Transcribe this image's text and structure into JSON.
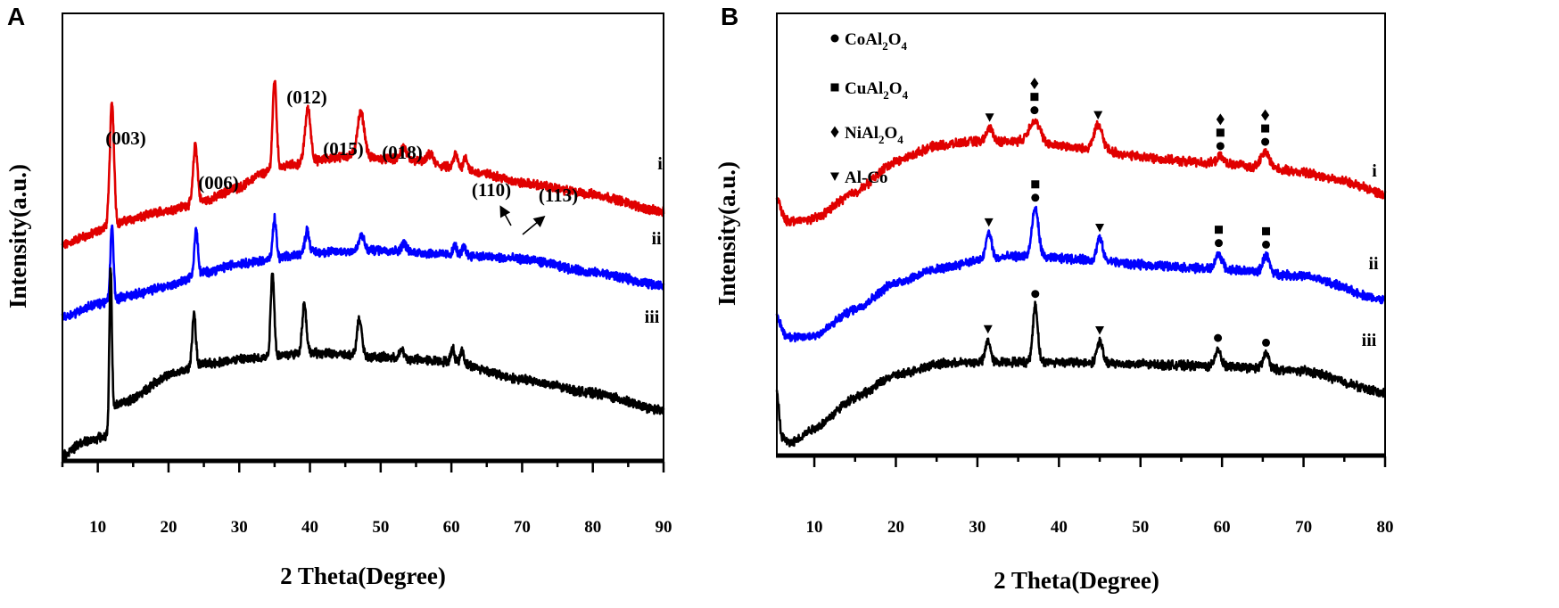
{
  "chart_data": [
    {
      "panel_label": "A",
      "type": "line",
      "xlabel": "2 Theta(Degree)",
      "ylabel": "Intensity(a.u.)",
      "xlim": [
        5,
        90
      ],
      "ylim": [
        0,
        100
      ],
      "xticks": [
        10,
        20,
        30,
        40,
        50,
        60,
        70,
        80,
        90
      ],
      "xtick_labels": [
        "10",
        "20",
        "30",
        "40",
        "50",
        "60",
        "70",
        "80",
        "90"
      ],
      "grid": false,
      "annotations": [
        {
          "text": "(003)",
          "x": 12.0
        },
        {
          "text": "(006)",
          "x": 23.8
        },
        {
          "text": "(012)",
          "x": 35.0
        },
        {
          "text": "(015)",
          "x": 39.7
        },
        {
          "text": "(018)",
          "x": 47.2
        },
        {
          "text": "(110)",
          "x": 60.6
        },
        {
          "text": "(113)",
          "x": 62.0
        }
      ],
      "series": [
        {
          "name": "i",
          "color": "#e00000",
          "baseline": [
            [
              5,
              48
            ],
            [
              8,
              50
            ],
            [
              12,
              52.5
            ],
            [
              15,
              54
            ],
            [
              20,
              56
            ],
            [
              25,
              58
            ],
            [
              30,
              61
            ],
            [
              33,
              64
            ],
            [
              37,
              66
            ],
            [
              45,
              68
            ],
            [
              50,
              67.5
            ],
            [
              55,
              67
            ],
            [
              60,
              65.5
            ],
            [
              65,
              64
            ],
            [
              70,
              62
            ],
            [
              80,
              59.5
            ],
            [
              90,
              55.5
            ]
          ],
          "peaks": [
            [
              12.0,
              27.5,
              0.3
            ],
            [
              23.8,
              13,
              0.3
            ],
            [
              35.0,
              20,
              0.28
            ],
            [
              39.7,
              12,
              0.4
            ],
            [
              47.2,
              10,
              0.5
            ],
            [
              53.2,
              3,
              0.4
            ],
            [
              57,
              2,
              0.4
            ],
            [
              60.6,
              3,
              0.3
            ],
            [
              62.0,
              3,
              0.3
            ]
          ]
        },
        {
          "name": "ii",
          "color": "#0000ff",
          "baseline": [
            [
              5,
              32
            ],
            [
              10,
              35
            ],
            [
              15,
              37
            ],
            [
              20,
              39
            ],
            [
              25,
              42
            ],
            [
              30,
              44
            ],
            [
              35,
              45
            ],
            [
              40,
              46.5
            ],
            [
              50,
              47
            ],
            [
              60,
              46
            ],
            [
              70,
              45
            ],
            [
              80,
              42
            ],
            [
              90,
              39
            ]
          ],
          "peaks": [
            [
              12.0,
              16.5,
              0.22
            ],
            [
              23.9,
              10,
              0.25
            ],
            [
              35.0,
              9,
              0.25
            ],
            [
              39.6,
              5,
              0.3
            ],
            [
              47.3,
              3.5,
              0.35
            ],
            [
              53.3,
              2,
              0.3
            ],
            [
              60.5,
              2,
              0.25
            ],
            [
              61.8,
              2,
              0.25
            ]
          ]
        },
        {
          "name": "iii",
          "color": "#000000",
          "baseline": [
            [
              5,
              1
            ],
            [
              8,
              4
            ],
            [
              11.5,
              5.5
            ],
            [
              11.9,
              12
            ],
            [
              14,
              13
            ],
            [
              20,
              19
            ],
            [
              25,
              21.5
            ],
            [
              30,
              22.5
            ],
            [
              40,
              24
            ],
            [
              50,
              23
            ],
            [
              55,
              22.5
            ],
            [
              60,
              22
            ],
            [
              70,
              18
            ],
            [
              80,
              15
            ],
            [
              90,
              11
            ]
          ],
          "peaks": [
            [
              11.8,
              32,
              0.18
            ],
            [
              23.6,
              12,
              0.25
            ],
            [
              34.7,
              19,
              0.25
            ],
            [
              39.2,
              11,
              0.3
            ],
            [
              47.0,
              8.5,
              0.35
            ],
            [
              53,
              2,
              0.3
            ],
            [
              60.2,
              3,
              0.25
            ],
            [
              61.5,
              3,
              0.25
            ]
          ]
        }
      ]
    },
    {
      "panel_label": "B",
      "type": "line",
      "xlabel": "2 Theta(Degree)",
      "ylabel": "Intensity(a.u.)",
      "xlim": [
        5.4,
        80
      ],
      "ylim": [
        0,
        100
      ],
      "xticks": [
        10,
        20,
        30,
        40,
        50,
        60,
        70,
        80
      ],
      "xtick_labels": [
        "10",
        "20",
        "30",
        "40",
        "50",
        "60",
        "70",
        "80"
      ],
      "grid": false,
      "legend_position": "top-left",
      "legend": [
        {
          "marker": "circle",
          "label": "CoAl",
          "sub1": "2",
          "mid": "O",
          "sub2": "4"
        },
        {
          "marker": "square",
          "label": "CuAl",
          "sub1": "2",
          "mid": "O",
          "sub2": "4"
        },
        {
          "marker": "diamond",
          "label": "NiAl",
          "sub1": "2",
          "mid": "O",
          "sub2": "4"
        },
        {
          "marker": "triangle-down",
          "label": "Al-Co",
          "sub1": "",
          "mid": "",
          "sub2": ""
        }
      ],
      "series": [
        {
          "name": "i",
          "color": "#e00000",
          "baseline": [
            [
              5.4,
              58
            ],
            [
              6.5,
              53
            ],
            [
              8,
              53
            ],
            [
              10,
              53.5
            ],
            [
              15,
              59.5
            ],
            [
              20,
              66.5
            ],
            [
              25,
              70
            ],
            [
              30,
              71
            ],
            [
              35,
              71
            ],
            [
              40,
              70
            ],
            [
              45,
              69
            ],
            [
              50,
              67.5
            ],
            [
              55,
              66.5
            ],
            [
              60,
              66
            ],
            [
              65,
              65
            ],
            [
              70,
              64
            ],
            [
              75,
              62
            ],
            [
              80,
              59
            ]
          ],
          "peaks": [
            [
              31.5,
              3,
              0.4
            ],
            [
              37.0,
              5,
              0.7
            ],
            [
              44.8,
              5.5,
              0.55
            ],
            [
              59.8,
              1.5,
              0.4
            ],
            [
              65.3,
              3.5,
              0.55
            ]
          ],
          "markers": [
            [
              31.5,
              [
                "triangle-down"
              ]
            ],
            [
              37.0,
              [
                "circle",
                "square",
                "diamond"
              ]
            ],
            [
              44.8,
              [
                "triangle-down"
              ]
            ],
            [
              59.8,
              [
                "circle",
                "square",
                "diamond"
              ]
            ],
            [
              65.3,
              [
                "circle",
                "square",
                "diamond"
              ]
            ]
          ]
        },
        {
          "name": "ii",
          "color": "#0000ff",
          "baseline": [
            [
              5.4,
              31
            ],
            [
              6.5,
              27
            ],
            [
              8,
              26.5
            ],
            [
              10,
              27
            ],
            [
              15,
              33
            ],
            [
              20,
              39
            ],
            [
              25,
              42
            ],
            [
              30,
              44
            ],
            [
              35,
              45
            ],
            [
              40,
              44.5
            ],
            [
              45,
              44
            ],
            [
              50,
              43
            ],
            [
              60,
              42
            ],
            [
              70,
              40.5
            ],
            [
              80,
              35
            ]
          ],
          "peaks": [
            [
              31.4,
              6,
              0.35
            ],
            [
              37.1,
              11,
              0.4
            ],
            [
              45.0,
              5,
              0.35
            ],
            [
              59.6,
              3.5,
              0.4
            ],
            [
              65.4,
              4,
              0.4
            ]
          ],
          "markers": [
            [
              31.4,
              [
                "triangle-down"
              ]
            ],
            [
              37.1,
              [
                "circle",
                "square"
              ]
            ],
            [
              45.0,
              [
                "triangle-down"
              ]
            ],
            [
              59.6,
              [
                "circle",
                "square"
              ]
            ],
            [
              65.4,
              [
                "circle",
                "square"
              ]
            ]
          ]
        },
        {
          "name": "iii",
          "color": "#000000",
          "baseline": [
            [
              5.4,
              14
            ],
            [
              6,
              4
            ],
            [
              7,
              2.5
            ],
            [
              10,
              6
            ],
            [
              15,
              13
            ],
            [
              20,
              18
            ],
            [
              25,
              20.5
            ],
            [
              30,
              21
            ],
            [
              40,
              21
            ],
            [
              50,
              20.5
            ],
            [
              60,
              20
            ],
            [
              70,
              19
            ],
            [
              80,
              14
            ]
          ],
          "peaks": [
            [
              31.3,
              5,
              0.3
            ],
            [
              37.1,
              13,
              0.3
            ],
            [
              45.0,
              5,
              0.35
            ],
            [
              59.5,
              4,
              0.35
            ],
            [
              65.4,
              3.5,
              0.35
            ]
          ],
          "markers": [
            [
              31.3,
              [
                "triangle-down"
              ]
            ],
            [
              37.1,
              [
                "circle"
              ]
            ],
            [
              45.0,
              [
                "triangle-down"
              ]
            ],
            [
              59.5,
              [
                "circle"
              ]
            ],
            [
              65.4,
              [
                "circle"
              ]
            ]
          ]
        }
      ]
    }
  ]
}
